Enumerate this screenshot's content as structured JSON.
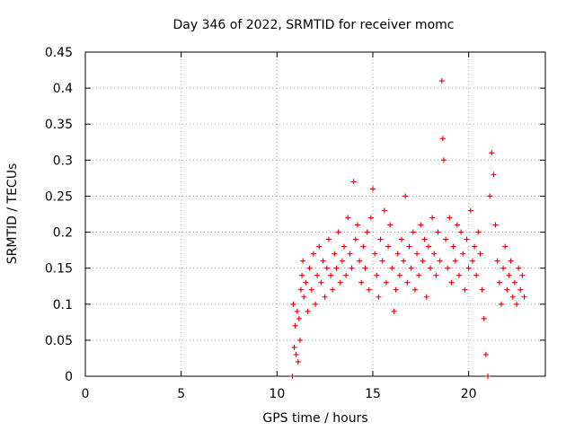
{
  "chart_data": {
    "type": "scatter",
    "title": "Day 346 of 2022, SRMTID for receiver momc",
    "xlabel": "GPS time / hours",
    "ylabel": "SRMTID / TECUs",
    "xlim": [
      0,
      24
    ],
    "ylim": [
      0,
      0.45
    ],
    "xticks": [
      0,
      5,
      10,
      15,
      20
    ],
    "yticks": [
      0,
      0.05,
      0.1,
      0.15,
      0.2,
      0.25,
      0.3,
      0.35,
      0.4,
      0.45
    ],
    "grid": true,
    "marker": "plus",
    "color": "#dd0000",
    "series": [
      {
        "name": "SRMTID",
        "x": [
          10.8,
          10.85,
          10.9,
          10.95,
          11.0,
          11.05,
          11.1,
          11.15,
          11.2,
          11.25,
          11.3,
          11.35,
          11.4,
          11.5,
          11.6,
          11.7,
          11.8,
          11.9,
          12.0,
          12.1,
          12.2,
          12.3,
          12.4,
          12.5,
          12.6,
          12.7,
          12.8,
          12.9,
          13.0,
          13.1,
          13.2,
          13.3,
          13.4,
          13.5,
          13.6,
          13.7,
          13.8,
          13.9,
          14.0,
          14.1,
          14.2,
          14.3,
          14.4,
          14.5,
          14.6,
          14.7,
          14.8,
          14.9,
          15.0,
          15.1,
          15.2,
          15.3,
          15.4,
          15.5,
          15.6,
          15.7,
          15.8,
          15.9,
          16.0,
          16.1,
          16.2,
          16.3,
          16.4,
          16.5,
          16.6,
          16.7,
          16.8,
          16.9,
          17.0,
          17.1,
          17.2,
          17.3,
          17.4,
          17.5,
          17.6,
          17.7,
          17.8,
          17.9,
          18.0,
          18.1,
          18.2,
          18.3,
          18.4,
          18.5,
          18.6,
          18.65,
          18.7,
          18.8,
          18.9,
          19.0,
          19.1,
          19.2,
          19.3,
          19.4,
          19.5,
          19.6,
          19.7,
          19.8,
          19.9,
          20.0,
          20.1,
          20.2,
          20.3,
          20.4,
          20.5,
          20.6,
          20.7,
          20.8,
          20.9,
          21.0,
          21.1,
          21.2,
          21.3,
          21.4,
          21.5,
          21.6,
          21.7,
          21.8,
          21.9,
          22.0,
          22.1,
          22.2,
          22.3,
          22.4,
          22.5,
          22.6,
          22.7,
          22.8,
          22.9
        ],
        "y": [
          0.0,
          0.1,
          0.04,
          0.07,
          0.03,
          0.09,
          0.02,
          0.08,
          0.05,
          0.12,
          0.14,
          0.16,
          0.11,
          0.13,
          0.09,
          0.15,
          0.12,
          0.17,
          0.1,
          0.14,
          0.18,
          0.13,
          0.16,
          0.11,
          0.15,
          0.19,
          0.14,
          0.12,
          0.17,
          0.15,
          0.2,
          0.13,
          0.16,
          0.18,
          0.14,
          0.22,
          0.17,
          0.15,
          0.27,
          0.19,
          0.21,
          0.16,
          0.13,
          0.18,
          0.15,
          0.2,
          0.12,
          0.22,
          0.26,
          0.17,
          0.14,
          0.11,
          0.19,
          0.16,
          0.23,
          0.13,
          0.18,
          0.21,
          0.15,
          0.09,
          0.12,
          0.17,
          0.14,
          0.19,
          0.16,
          0.25,
          0.13,
          0.18,
          0.15,
          0.2,
          0.12,
          0.17,
          0.14,
          0.21,
          0.16,
          0.19,
          0.11,
          0.18,
          0.15,
          0.22,
          0.17,
          0.14,
          0.2,
          0.16,
          0.41,
          0.33,
          0.3,
          0.19,
          0.15,
          0.22,
          0.13,
          0.18,
          0.16,
          0.21,
          0.14,
          0.2,
          0.17,
          0.12,
          0.19,
          0.15,
          0.23,
          0.16,
          0.18,
          0.14,
          0.2,
          0.17,
          0.12,
          0.08,
          0.03,
          0.0,
          0.25,
          0.31,
          0.28,
          0.21,
          0.16,
          0.13,
          0.1,
          0.15,
          0.18,
          0.12,
          0.14,
          0.16,
          0.11,
          0.13,
          0.1,
          0.15,
          0.12,
          0.14,
          0.11
        ]
      }
    ]
  }
}
